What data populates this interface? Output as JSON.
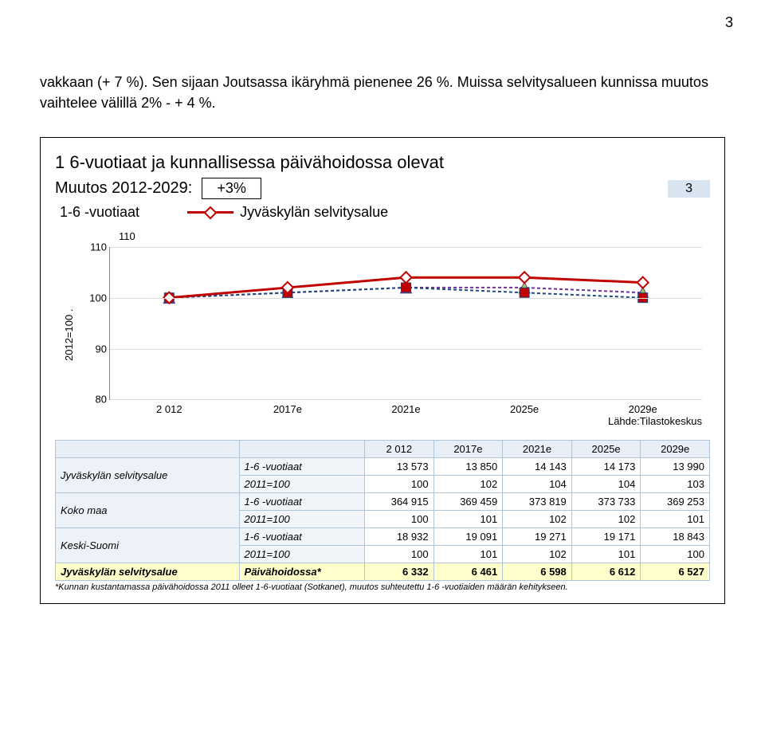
{
  "page_number": "3",
  "intro": "vakkaan (+ 7 %). Sen sijaan Joutsassa ikäryhmä pienenee 26 %. Muissa selvitysalueen kunnissa muutos vaihtelee välillä 2% - + 4 %.",
  "chart": {
    "title": "1 6-vuotiaat ja kunnallisessa päivähoidossa olevat",
    "muutos_label": "Muutos 2012-2029:",
    "muutos_value": "+3%",
    "slide_num": "3",
    "series_axis_label": "1-6 -vuotiaat",
    "axis110": "110",
    "series_legend": "Jyväskylän selvitysalue",
    "y_axis_label": "2012=100 .",
    "y_ticks": [
      "80",
      "90",
      "100",
      "110"
    ],
    "y_min": 80,
    "y_max": 110,
    "x_ticks": [
      "2 012",
      "2017e",
      "2021e",
      "2025e",
      "2029e"
    ],
    "source": "Lähde:Tilastokeskus",
    "background_color": "#ffffff",
    "gridline_color": "#dddddd",
    "series": {
      "main": {
        "color": "#c00000",
        "marker": "diamond",
        "marker_fill": "#ffffff",
        "line_width": 3,
        "dash": "none",
        "values": [
          100,
          102,
          104,
          104,
          103
        ]
      },
      "ref1": {
        "color": "#7030a0",
        "marker": "triangle",
        "marker_fill": "#92d050",
        "line_width": 2,
        "dash": "4 3",
        "values": [
          100,
          101,
          102,
          102,
          101
        ]
      },
      "ref2": {
        "color": "#1f497d",
        "marker": "square",
        "marker_fill": "#c00000",
        "line_width": 2,
        "dash": "4 3",
        "values": [
          100,
          101,
          102,
          101,
          100
        ]
      }
    }
  },
  "table": {
    "header": [
      "",
      "",
      "2 012",
      "2017e",
      "2021e",
      "2025e",
      "2029e"
    ],
    "groups": [
      {
        "label": "Jyväskylän selvitysalue",
        "rows": [
          {
            "label": "1-6 -vuotiaat",
            "vals": [
              "13 573",
              "13 850",
              "14 143",
              "14 173",
              "13 990"
            ]
          },
          {
            "label": "2011=100",
            "vals": [
              "100",
              "102",
              "104",
              "104",
              "103"
            ]
          }
        ]
      },
      {
        "label": "Koko maa",
        "rows": [
          {
            "label": "1-6 -vuotiaat",
            "vals": [
              "364 915",
              "369 459",
              "373 819",
              "373 733",
              "369 253"
            ]
          },
          {
            "label": "2011=100",
            "vals": [
              "100",
              "101",
              "102",
              "102",
              "101"
            ]
          }
        ]
      },
      {
        "label": "Keski-Suomi",
        "rows": [
          {
            "label": "1-6 -vuotiaat",
            "vals": [
              "18 932",
              "19 091",
              "19 271",
              "19 171",
              "18 843"
            ]
          },
          {
            "label": "2011=100",
            "vals": [
              "100",
              "101",
              "102",
              "101",
              "100"
            ]
          }
        ]
      }
    ],
    "highlight": {
      "group": "Jyväskylän selvitysalue",
      "row_label": "Päivähoidossa*",
      "vals": [
        "6 332",
        "6 461",
        "6 598",
        "6 612",
        "6 527"
      ]
    },
    "footnote": "*Kunnan kustantamassa päivähoidossa 2011 olleet 1-6-vuotiaat (Sotkanet), muutos suhteutettu 1-6 -vuotiaiden määrän kehitykseen."
  }
}
